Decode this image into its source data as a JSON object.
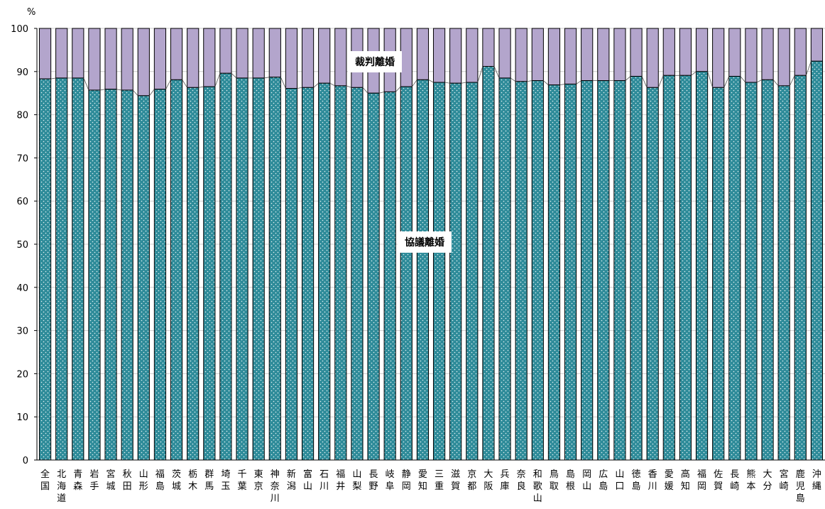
{
  "chart_data": {
    "type": "bar",
    "stacked": true,
    "unit_label": "%",
    "ylim": [
      0,
      100
    ],
    "yticks": [
      0,
      10,
      20,
      30,
      40,
      50,
      60,
      70,
      80,
      90,
      100
    ],
    "grid": true,
    "categories": [
      [
        "全",
        "国"
      ],
      [
        "北",
        "海",
        "道"
      ],
      [
        "青",
        "森"
      ],
      [
        "岩",
        "手"
      ],
      [
        "宮",
        "城"
      ],
      [
        "秋",
        "田"
      ],
      [
        "山",
        "形"
      ],
      [
        "福",
        "島"
      ],
      [
        "茨",
        "城"
      ],
      [
        "栃",
        "木"
      ],
      [
        "群",
        "馬"
      ],
      [
        "埼",
        "玉"
      ],
      [
        "千",
        "葉"
      ],
      [
        "東",
        "京"
      ],
      [
        "神",
        "奈",
        "川"
      ],
      [
        "新",
        "潟"
      ],
      [
        "富",
        "山"
      ],
      [
        "石",
        "川"
      ],
      [
        "福",
        "井"
      ],
      [
        "山",
        "梨"
      ],
      [
        "長",
        "野"
      ],
      [
        "岐",
        "阜"
      ],
      [
        "静",
        "岡"
      ],
      [
        "愛",
        "知"
      ],
      [
        "三",
        "重"
      ],
      [
        "滋",
        "賀"
      ],
      [
        "京",
        "都"
      ],
      [
        "大",
        "阪"
      ],
      [
        "兵",
        "庫"
      ],
      [
        "奈",
        "良"
      ],
      [
        "和",
        "歌",
        "山"
      ],
      [
        "鳥",
        "取"
      ],
      [
        "島",
        "根"
      ],
      [
        "岡",
        "山"
      ],
      [
        "広",
        "島"
      ],
      [
        "山",
        "口"
      ],
      [
        "徳",
        "島"
      ],
      [
        "香",
        "川"
      ],
      [
        "愛",
        "媛"
      ],
      [
        "高",
        "知"
      ],
      [
        "福",
        "岡"
      ],
      [
        "佐",
        "賀"
      ],
      [
        "長",
        "崎"
      ],
      [
        "熊",
        "本"
      ],
      [
        "大",
        "分"
      ],
      [
        "宮",
        "崎"
      ],
      [
        "鹿",
        "児",
        "島"
      ],
      [
        "沖",
        "縄"
      ]
    ],
    "series": [
      {
        "name": "協議離婚",
        "color": "#2e8b99",
        "values": [
          88.3,
          88.5,
          88.5,
          85.7,
          85.9,
          85.7,
          84.4,
          85.9,
          88.1,
          86.3,
          86.5,
          89.6,
          88.5,
          88.5,
          88.7,
          86.1,
          86.3,
          87.3,
          86.7,
          86.3,
          85.0,
          85.3,
          86.5,
          88.1,
          87.5,
          87.3,
          87.5,
          91.2,
          88.5,
          87.7,
          87.9,
          86.9,
          87.1,
          87.9,
          87.9,
          87.9,
          88.9,
          86.3,
          89.1,
          89.1,
          90.0,
          86.3,
          88.9,
          87.5,
          88.1,
          86.7,
          89.1,
          92.4
        ]
      },
      {
        "name": "裁判離婚",
        "color": "#b3a5cc"
      }
    ],
    "annotations": [
      "裁判離婚",
      "協議離婚"
    ]
  }
}
